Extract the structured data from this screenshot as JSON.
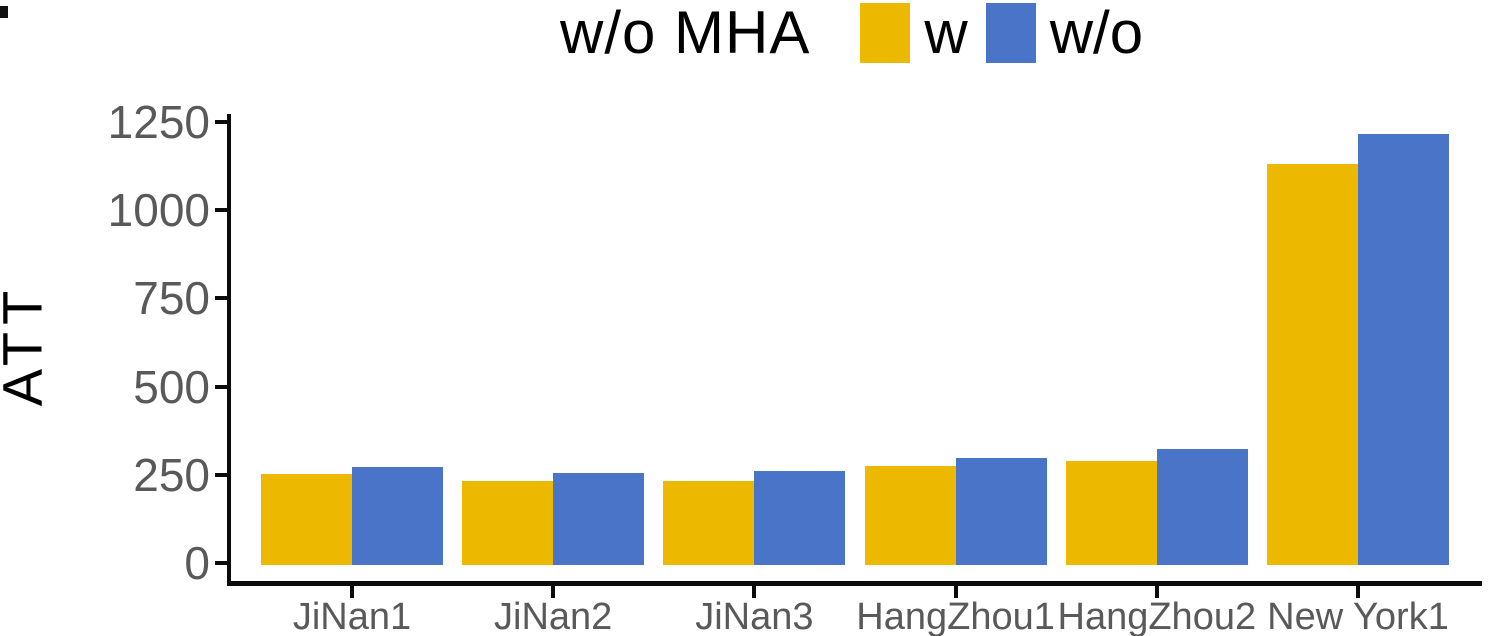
{
  "title": {
    "text": "w/o MHA"
  },
  "legend": {
    "items": [
      {
        "label": "w",
        "color": "#ECB900"
      },
      {
        "label": "w/o",
        "color": "#4A74C8"
      }
    ]
  },
  "colors": {
    "series_w": "#ECB900",
    "series_wo": "#4A74C8",
    "axis": "#0b0b0b",
    "tick_text": "#595959",
    "title_text": "#000000"
  },
  "chart_data": {
    "type": "bar",
    "title": "w/o MHA",
    "xlabel": "",
    "ylabel": "ATT",
    "categories": [
      "JiNan1",
      "JiNan2",
      "JiNan3",
      "HangZhou1",
      "HangZhou2",
      "New York1"
    ],
    "series": [
      {
        "name": "w",
        "color": "#ECB900",
        "values": [
          252,
          232,
          234,
          275,
          290,
          1130
        ]
      },
      {
        "name": "w/o",
        "color": "#4A74C8",
        "values": [
          272,
          256,
          262,
          297,
          323,
          1215
        ]
      }
    ],
    "ylim": [
      0,
      1250
    ],
    "yticks": [
      0,
      250,
      500,
      750,
      1000,
      1250
    ],
    "grid": false,
    "legend_position": "top"
  }
}
